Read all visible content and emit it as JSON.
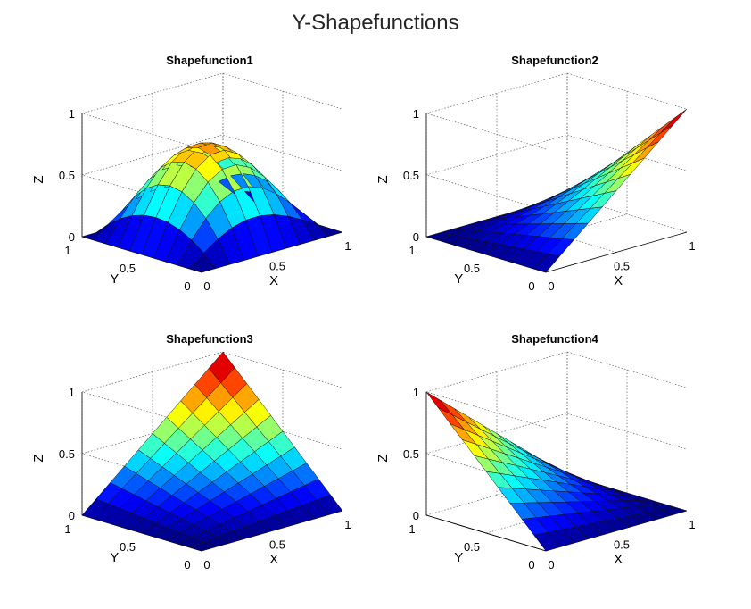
{
  "figure": {
    "title": "Y-Shapefunctions"
  },
  "chart_data": [
    {
      "type": "surface",
      "title": "Shapefunction1",
      "xlabel": "X",
      "ylabel": "Y",
      "zlabel": "Z",
      "xlim": [
        0,
        1
      ],
      "ylim": [
        0,
        1
      ],
      "zlim": [
        0,
        1
      ],
      "xticks": [
        "0",
        "0.5",
        "1"
      ],
      "yticks": [
        "0",
        "0.5",
        "1"
      ],
      "zticks": [
        "0",
        "0.5",
        "1"
      ],
      "grid": true,
      "colormap": "jet",
      "x": [
        0,
        0.1,
        0.2,
        0.3,
        0.4,
        0.5,
        0.6,
        0.7,
        0.8,
        0.9,
        1
      ],
      "y": [
        0,
        0.1,
        0.2,
        0.3,
        0.4,
        0.5,
        0.6,
        0.7,
        0.8,
        0.9,
        1
      ],
      "function": "shape1"
    },
    {
      "type": "surface",
      "title": "Shapefunction2",
      "xlabel": "X",
      "ylabel": "Y",
      "zlabel": "Z",
      "xlim": [
        0,
        1
      ],
      "ylim": [
        0,
        1
      ],
      "zlim": [
        0,
        1
      ],
      "xticks": [
        "0",
        "0.5",
        "1"
      ],
      "yticks": [
        "0",
        "0.5",
        "1"
      ],
      "zticks": [
        "0",
        "0.5",
        "1"
      ],
      "grid": true,
      "colormap": "jet",
      "x": [
        0,
        0.1,
        0.2,
        0.3,
        0.4,
        0.5,
        0.6,
        0.7,
        0.8,
        0.9,
        1
      ],
      "y": [
        0,
        0.1,
        0.2,
        0.3,
        0.4,
        0.5,
        0.6,
        0.7,
        0.8,
        0.9,
        1
      ],
      "function": "shape2"
    },
    {
      "type": "surface",
      "title": "Shapefunction3",
      "xlabel": "X",
      "ylabel": "Y",
      "zlabel": "Z",
      "xlim": [
        0,
        1
      ],
      "ylim": [
        0,
        1
      ],
      "zlim": [
        0,
        1
      ],
      "xticks": [
        "0",
        "0.5",
        "1"
      ],
      "yticks": [
        "0",
        "0.5",
        "1"
      ],
      "zticks": [
        "0",
        "0.5",
        "1"
      ],
      "grid": true,
      "colormap": "jet",
      "x": [
        0,
        0.1,
        0.2,
        0.3,
        0.4,
        0.5,
        0.6,
        0.7,
        0.8,
        0.9,
        1
      ],
      "y": [
        0,
        0.1,
        0.2,
        0.3,
        0.4,
        0.5,
        0.6,
        0.7,
        0.8,
        0.9,
        1
      ],
      "function": "shape3"
    },
    {
      "type": "surface",
      "title": "Shapefunction4",
      "xlabel": "X",
      "ylabel": "Y",
      "zlabel": "Z",
      "xlim": [
        0,
        1
      ],
      "ylim": [
        0,
        1
      ],
      "zlim": [
        0,
        1
      ],
      "xticks": [
        "0",
        "0.5",
        "1"
      ],
      "yticks": [
        "0",
        "0.5",
        "1"
      ],
      "zticks": [
        "0",
        "0.5",
        "1"
      ],
      "grid": true,
      "colormap": "jet",
      "x": [
        0,
        0.1,
        0.2,
        0.3,
        0.4,
        0.5,
        0.6,
        0.7,
        0.8,
        0.9,
        1
      ],
      "y": [
        0,
        0.1,
        0.2,
        0.3,
        0.4,
        0.5,
        0.6,
        0.7,
        0.8,
        0.9,
        1
      ],
      "function": "shape4"
    }
  ]
}
